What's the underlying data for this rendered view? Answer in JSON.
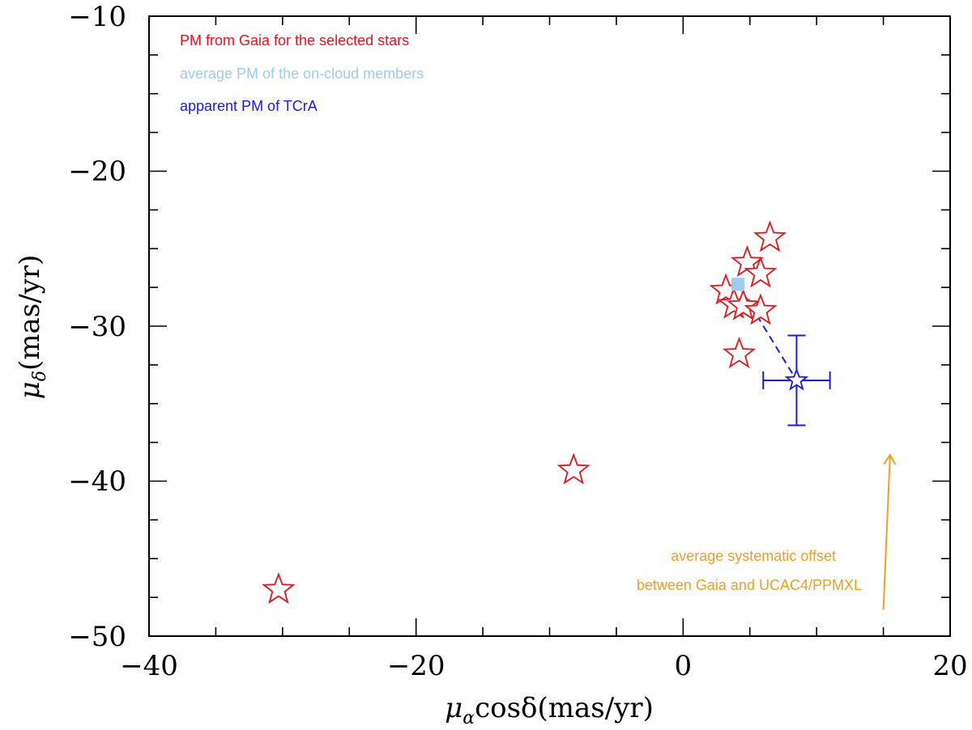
{
  "chart_data": {
    "type": "scatter",
    "xlim": [
      -40,
      20
    ],
    "ylim": [
      -50,
      -10
    ],
    "x_ticks": [
      -40,
      -20,
      0,
      20
    ],
    "y_ticks": [
      -10,
      -20,
      -30,
      -40,
      -50
    ],
    "x_tick_labels": [
      "−40",
      "−20",
      "0",
      "20"
    ],
    "y_tick_labels": [
      "−10",
      "−20",
      "−30",
      "−40",
      "−50"
    ],
    "x_minor_step": 5,
    "y_minor_step": 2.5,
    "xlabel": {
      "main": "μ",
      "sub": "α",
      "rest": "cosδ(mas/yr)"
    },
    "ylabel": {
      "main": "μ",
      "sub": "δ",
      "rest": "(mas/yr)"
    },
    "legend": [
      {
        "label": "PM from Gaia for the selected stars",
        "color": "#e8141b"
      },
      {
        "label": "average PM of the on-cloud members",
        "color": "#9ecbf0"
      },
      {
        "label": "apparent PM of TCrA",
        "color": "#1a1aee"
      }
    ],
    "series": [
      {
        "name": "PM from Gaia for the selected stars",
        "marker": "open-star",
        "color": "#e8141b",
        "points": [
          {
            "x": 6.5,
            "y": -24.2
          },
          {
            "x": 4.8,
            "y": -25.8
          },
          {
            "x": 5.8,
            "y": -26.5
          },
          {
            "x": 3.2,
            "y": -27.6
          },
          {
            "x": 3.8,
            "y": -28.5
          },
          {
            "x": 4.5,
            "y": -28.6
          },
          {
            "x": 5.8,
            "y": -28.9
          },
          {
            "x": 4.2,
            "y": -31.7
          },
          {
            "x": -8.2,
            "y": -39.2
          },
          {
            "x": -30.3,
            "y": -46.9
          }
        ]
      },
      {
        "name": "average PM of the on-cloud members",
        "marker": "filled-square",
        "color": "#9ecbf0",
        "points": [
          {
            "x": 4.1,
            "y": -27.3
          }
        ]
      },
      {
        "name": "apparent PM of TCrA",
        "marker": "open-star",
        "color": "#1a1aee",
        "points": [
          {
            "x": 8.5,
            "y": -33.5,
            "xerr": 2.5,
            "yerr": 2.9
          }
        ]
      }
    ],
    "annotations": [
      {
        "type": "dashed-arrow",
        "color": "#1a1aee",
        "from": {
          "x": 4.1,
          "y": -27.3
        },
        "to": {
          "x": 8.5,
          "y": -33.5
        }
      },
      {
        "type": "arrow",
        "color": "#f0a020",
        "from": {
          "x": 15,
          "y": -48.3
        },
        "to": {
          "x": 15.5,
          "y": -38.3
        }
      },
      {
        "type": "text",
        "color": "#f0a020",
        "lines": [
          "average systematic offset",
          "between Gaia and UCAC4/PPMXL"
        ]
      }
    ]
  }
}
